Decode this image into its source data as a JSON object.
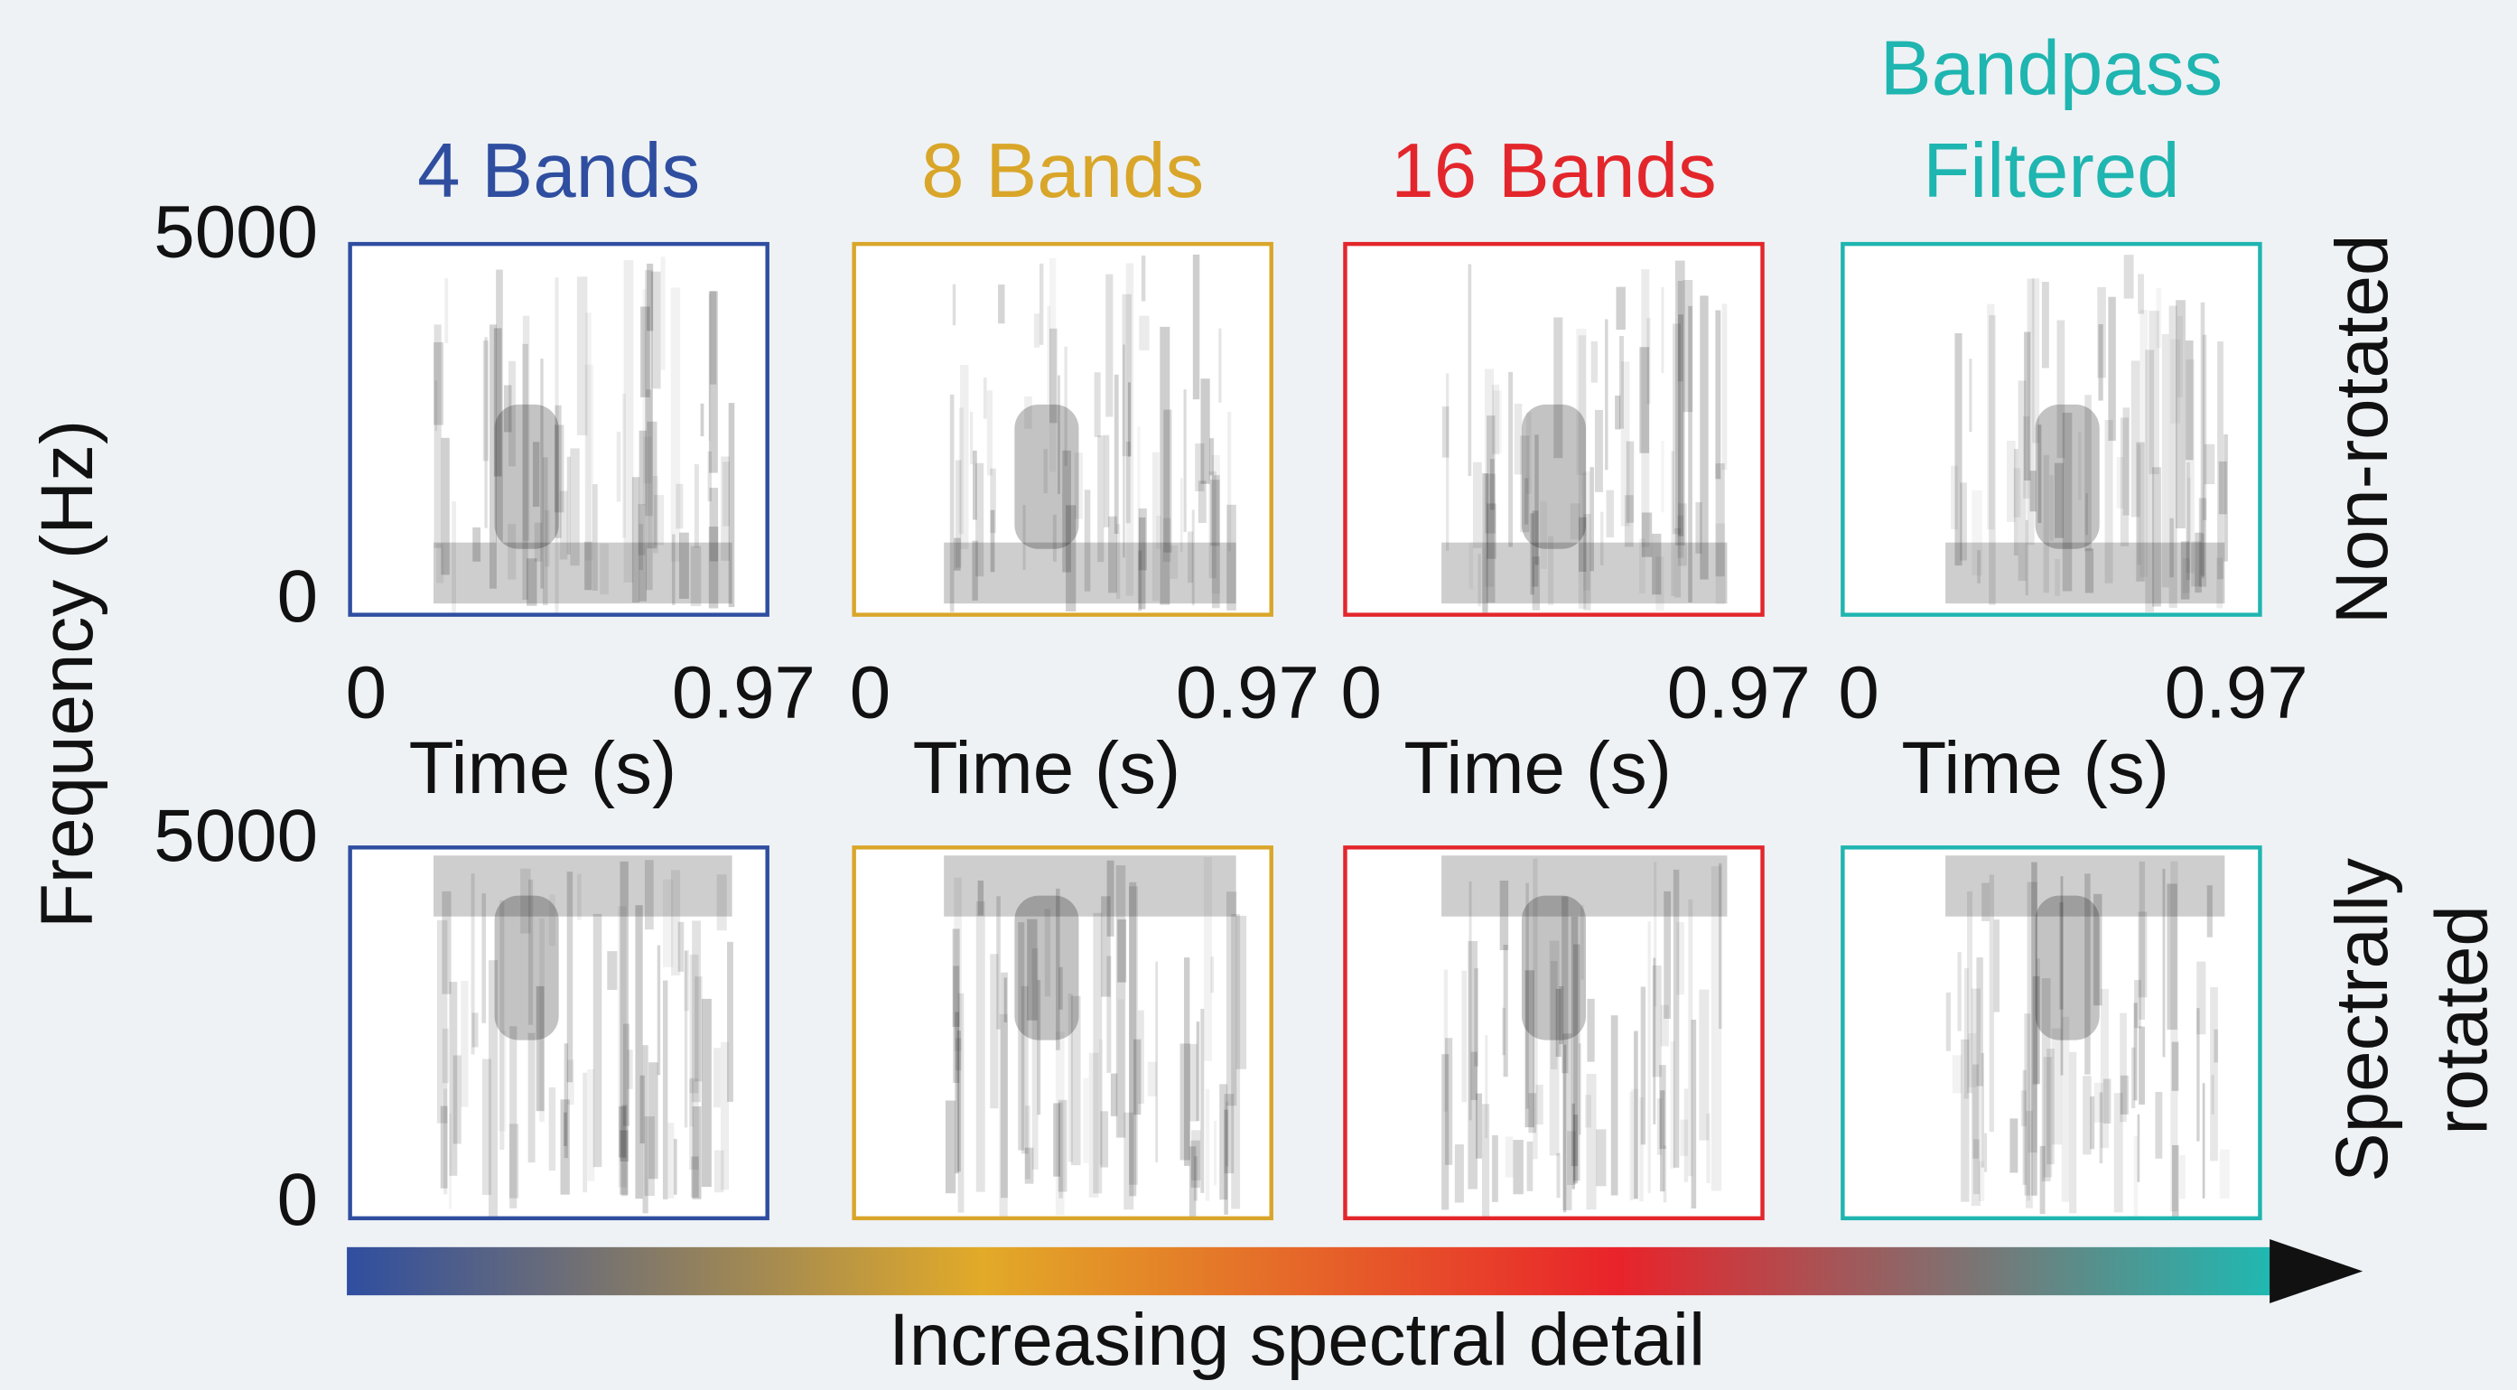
{
  "figure": {
    "y_label": "Frequency (Hz)",
    "x_label": "Time (s)",
    "y_ticks": [
      "5000",
      "0"
    ],
    "x_ticks": [
      "0",
      "0.97"
    ],
    "rows": [
      {
        "label": [
          "Non-rotated"
        ]
      },
      {
        "label": [
          "Spectrally",
          "rotated"
        ]
      }
    ],
    "columns": [
      {
        "title": [
          "4 Bands"
        ],
        "color": "#2f4ea0"
      },
      {
        "title": [
          "8 Bands"
        ],
        "color": "#d9a62a"
      },
      {
        "title": [
          "16 Bands"
        ],
        "color": "#e3262b"
      },
      {
        "title": [
          "Bandpass",
          "Filtered"
        ],
        "color": "#1fb5b0"
      }
    ],
    "gradient_label": "Increasing spectral detail"
  }
}
